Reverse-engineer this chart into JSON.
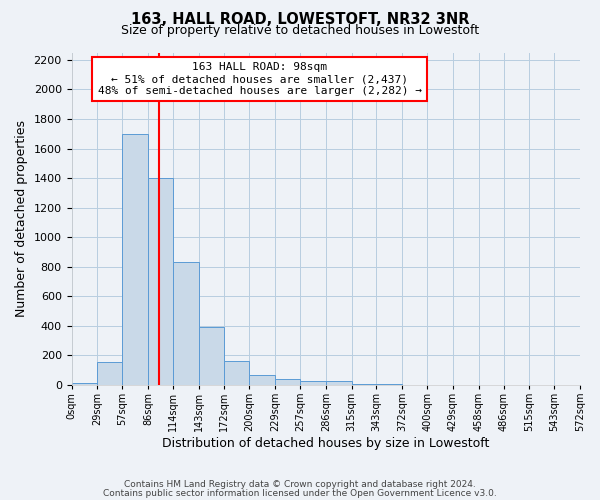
{
  "title": "163, HALL ROAD, LOWESTOFT, NR32 3NR",
  "subtitle": "Size of property relative to detached houses in Lowestoft",
  "xlabel": "Distribution of detached houses by size in Lowestoft",
  "ylabel": "Number of detached properties",
  "bin_edges": [
    0,
    29,
    57,
    86,
    114,
    143,
    172,
    200,
    229,
    257,
    286,
    315,
    343,
    372,
    400,
    429,
    458,
    486,
    515,
    543,
    572
  ],
  "bin_labels": [
    "0sqm",
    "29sqm",
    "57sqm",
    "86sqm",
    "114sqm",
    "143sqm",
    "172sqm",
    "200sqm",
    "229sqm",
    "257sqm",
    "286sqm",
    "315sqm",
    "343sqm",
    "372sqm",
    "400sqm",
    "429sqm",
    "458sqm",
    "486sqm",
    "515sqm",
    "543sqm",
    "572sqm"
  ],
  "bar_heights": [
    15,
    155,
    1700,
    1400,
    830,
    390,
    165,
    65,
    40,
    25,
    25,
    10,
    5,
    0,
    0,
    0,
    0,
    0,
    0,
    0
  ],
  "bar_color": "#c9d9e8",
  "bar_edge_color": "#5b9bd5",
  "vline_x": 98,
  "vline_color": "red",
  "annotation_title": "163 HALL ROAD: 98sqm",
  "annotation_line1": "← 51% of detached houses are smaller (2,437)",
  "annotation_line2": "48% of semi-detached houses are larger (2,282) →",
  "annotation_box_color": "white",
  "annotation_box_edge_color": "red",
  "ylim": [
    0,
    2250
  ],
  "yticks": [
    0,
    200,
    400,
    600,
    800,
    1000,
    1200,
    1400,
    1600,
    1800,
    2000,
    2200
  ],
  "footer_line1": "Contains HM Land Registry data © Crown copyright and database right 2024.",
  "footer_line2": "Contains public sector information licensed under the Open Government Licence v3.0.",
  "background_color": "#eef2f7",
  "grid_color": "#b8cde0"
}
